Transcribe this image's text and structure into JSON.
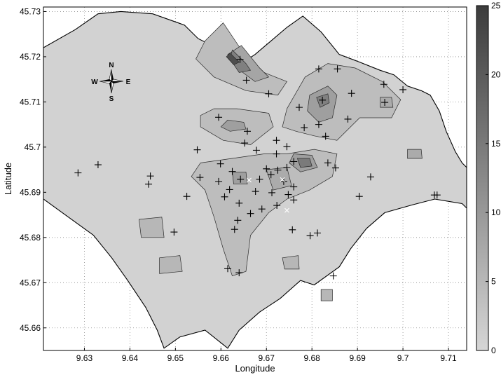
{
  "chart_data": {
    "type": "contour_map",
    "xlabel": "Longitude",
    "ylabel": "Latitude",
    "xlim": [
      9.621,
      9.714
    ],
    "ylim": [
      45.655,
      45.731
    ],
    "xticks": [
      "9.63",
      "9.64",
      "9.65",
      "9.66",
      "9.67",
      "9.68",
      "9.69",
      "9.7",
      "9.71"
    ],
    "yticks": [
      "45.66",
      "45.67",
      "45.68",
      "45.69",
      "45.7",
      "45.71",
      "45.72",
      "45.73"
    ],
    "grid": true,
    "colorbar": {
      "min": 0,
      "max": 25,
      "ticks": [
        "0",
        "5",
        "10",
        "15",
        "20",
        "25"
      ],
      "colormap": "gray",
      "low_color": "#d6d6d6",
      "high_color": "#3c3c3c"
    },
    "compass": {
      "N": "N",
      "S": "S",
      "E": "E",
      "W": "W"
    },
    "boundary": [
      [
        9.621,
        45.722
      ],
      [
        9.628,
        45.726
      ],
      [
        9.633,
        45.7295
      ],
      [
        9.638,
        45.73
      ],
      [
        9.645,
        45.7295
      ],
      [
        9.652,
        45.727
      ],
      [
        9.655,
        45.724
      ],
      [
        9.658,
        45.7225
      ],
      [
        9.661,
        45.7215
      ],
      [
        9.6645,
        45.7185
      ],
      [
        9.6675,
        45.7205
      ],
      [
        9.671,
        45.7235
      ],
      [
        9.6745,
        45.7265
      ],
      [
        9.678,
        45.729
      ],
      [
        9.682,
        45.7255
      ],
      [
        9.686,
        45.7205
      ],
      [
        9.69,
        45.719
      ],
      [
        9.695,
        45.717
      ],
      [
        9.698,
        45.716
      ],
      [
        9.701,
        45.7135
      ],
      [
        9.704,
        45.7125
      ],
      [
        9.706,
        45.7115
      ],
      [
        9.708,
        45.708
      ],
      [
        9.7095,
        45.7035
      ],
      [
        9.7115,
        45.699
      ],
      [
        9.713,
        45.6965
      ],
      [
        9.714,
        45.6955
      ],
      [
        9.714,
        45.6865
      ],
      [
        9.713,
        45.6875
      ],
      [
        9.707,
        45.6885
      ],
      [
        9.702,
        45.6872
      ],
      [
        9.696,
        45.6855
      ],
      [
        9.692,
        45.682
      ],
      [
        9.6885,
        45.6775
      ],
      [
        9.686,
        45.6735
      ],
      [
        9.6805,
        45.6695
      ],
      [
        9.6775,
        45.6705
      ],
      [
        9.673,
        45.6665
      ],
      [
        9.6685,
        45.6635
      ],
      [
        9.664,
        45.6595
      ],
      [
        9.6615,
        45.6555
      ],
      [
        9.6565,
        45.6595
      ],
      [
        9.651,
        45.658
      ],
      [
        9.6475,
        45.6555
      ],
      [
        9.646,
        45.6595
      ],
      [
        9.6435,
        45.6645
      ],
      [
        9.6395,
        45.6705
      ],
      [
        9.636,
        45.6755
      ],
      [
        9.632,
        45.6805
      ],
      [
        9.6265,
        45.6845
      ],
      [
        9.621,
        45.6885
      ]
    ],
    "level_regions": [
      {
        "level": 4,
        "ring": [
          [
            9.6565,
            45.7235
          ],
          [
            9.6605,
            45.7275
          ],
          [
            9.6645,
            45.7215
          ],
          [
            9.6695,
            45.7165
          ],
          [
            9.6745,
            45.7145
          ],
          [
            9.6725,
            45.7115
          ],
          [
            9.6655,
            45.7125
          ],
          [
            9.6585,
            45.7155
          ],
          [
            9.6545,
            45.7195
          ]
        ]
      },
      {
        "level": 8,
        "ring": [
          [
            9.6645,
            45.7225
          ],
          [
            9.6685,
            45.7175
          ],
          [
            9.6705,
            45.7155
          ],
          [
            9.6675,
            45.7145
          ],
          [
            9.6635,
            45.7175
          ],
          [
            9.6615,
            45.7205
          ]
        ]
      },
      {
        "level": 14,
        "ring": [
          [
            9.6625,
            45.7215
          ],
          [
            9.6655,
            45.7185
          ],
          [
            9.6665,
            45.717
          ],
          [
            9.664,
            45.7165
          ],
          [
            9.662,
            45.7195
          ]
        ]
      },
      {
        "level": 22,
        "ring": [
          [
            9.662,
            45.7208
          ],
          [
            9.664,
            45.7188
          ],
          [
            9.6628,
            45.7182
          ],
          [
            9.6612,
            45.72
          ]
        ]
      },
      {
        "level": 4,
        "ring": [
          [
            9.6585,
            45.7085
          ],
          [
            9.6635,
            45.7085
          ],
          [
            9.6705,
            45.7075
          ],
          [
            9.6715,
            45.7045
          ],
          [
            9.6665,
            45.7005
          ],
          [
            9.6605,
            45.7015
          ],
          [
            9.6555,
            45.7045
          ],
          [
            9.6555,
            45.707
          ]
        ]
      },
      {
        "level": 9,
        "ring": [
          [
            9.6615,
            45.706
          ],
          [
            9.665,
            45.7055
          ],
          [
            9.6655,
            45.704
          ],
          [
            9.662,
            45.7035
          ],
          [
            9.66,
            45.7045
          ]
        ]
      },
      {
        "level": 4,
        "ring": [
          [
            9.6745,
            45.7085
          ],
          [
            9.6785,
            45.7155
          ],
          [
            9.6835,
            45.7185
          ],
          [
            9.6895,
            45.7175
          ],
          [
            9.6955,
            45.7145
          ],
          [
            9.6995,
            45.7105
          ],
          [
            9.6975,
            45.7065
          ],
          [
            9.6905,
            45.7065
          ],
          [
            9.6855,
            45.7015
          ],
          [
            9.6805,
            45.7025
          ],
          [
            9.6765,
            45.7035
          ],
          [
            9.6735,
            45.7045
          ]
        ]
      },
      {
        "level": 9,
        "ring": [
          [
            9.6795,
            45.7115
          ],
          [
            9.6835,
            45.7135
          ],
          [
            9.6855,
            45.7115
          ],
          [
            9.6845,
            45.7065
          ],
          [
            9.6815,
            45.7055
          ],
          [
            9.679,
            45.708
          ]
        ]
      },
      {
        "level": 14,
        "ring": [
          [
            9.681,
            45.711
          ],
          [
            9.6835,
            45.7118
          ],
          [
            9.6838,
            45.7098
          ],
          [
            9.6818,
            45.7088
          ]
        ]
      },
      {
        "level": 7,
        "ring": [
          [
            9.695,
            45.711
          ],
          [
            9.6975,
            45.711
          ],
          [
            9.6978,
            45.7088
          ],
          [
            9.695,
            45.7088
          ]
        ]
      },
      {
        "level": 7,
        "ring": [
          [
            9.701,
            45.6995
          ],
          [
            9.704,
            45.6995
          ],
          [
            9.7042,
            45.6975
          ],
          [
            9.701,
            45.6975
          ]
        ]
      },
      {
        "level": 4,
        "ring": [
          [
            9.6555,
            45.6965
          ],
          [
            9.6625,
            45.6975
          ],
          [
            9.6695,
            45.6985
          ],
          [
            9.6745,
            45.6985
          ],
          [
            9.6805,
            45.6995
          ],
          [
            9.6855,
            45.6985
          ],
          [
            9.6845,
            45.6935
          ],
          [
            9.6795,
            45.6905
          ],
          [
            9.6745,
            45.6885
          ],
          [
            9.6705,
            45.6855
          ],
          [
            9.6665,
            45.6805
          ],
          [
            9.6655,
            45.6725
          ],
          [
            9.6625,
            45.6715
          ],
          [
            9.6605,
            45.6775
          ],
          [
            9.6585,
            45.6845
          ],
          [
            9.6565,
            45.6905
          ],
          [
            9.6535,
            45.6935
          ]
        ]
      },
      {
        "level": 9,
        "ring": [
          [
            9.676,
            45.6985
          ],
          [
            9.68,
            45.6982
          ],
          [
            9.6812,
            45.6955
          ],
          [
            9.6775,
            45.6945
          ],
          [
            9.675,
            45.6965
          ]
        ]
      },
      {
        "level": 15,
        "ring": [
          [
            9.6768,
            45.6975
          ],
          [
            9.6795,
            45.6975
          ],
          [
            9.68,
            45.6958
          ],
          [
            9.6775,
            45.6955
          ]
        ]
      },
      {
        "level": 9,
        "ring": [
          [
            9.6625,
            45.6945
          ],
          [
            9.6655,
            45.6945
          ],
          [
            9.6658,
            45.6918
          ],
          [
            9.6628,
            45.6918
          ]
        ]
      },
      {
        "level": 7,
        "ring": [
          [
            9.67,
            45.695
          ],
          [
            9.6745,
            45.6955
          ],
          [
            9.6755,
            45.6915
          ],
          [
            9.6715,
            45.6905
          ]
        ]
      },
      {
        "level": 5,
        "ring": [
          [
            9.642,
            45.684
          ],
          [
            9.647,
            45.6845
          ],
          [
            9.6475,
            45.68
          ],
          [
            9.6425,
            45.68
          ]
        ]
      },
      {
        "level": 5,
        "ring": [
          [
            9.6465,
            45.6755
          ],
          [
            9.651,
            45.676
          ],
          [
            9.6515,
            45.6725
          ],
          [
            9.6465,
            45.672
          ]
        ]
      },
      {
        "level": 5,
        "ring": [
          [
            9.6735,
            45.6755
          ],
          [
            9.677,
            45.676
          ],
          [
            9.6772,
            45.673
          ],
          [
            9.674,
            45.673
          ]
        ]
      },
      {
        "level": 5,
        "ring": [
          [
            9.682,
            45.6685
          ],
          [
            9.6845,
            45.6685
          ],
          [
            9.6845,
            45.666
          ],
          [
            9.682,
            45.666
          ]
        ]
      }
    ],
    "stations": [
      [
        9.6642,
        45.7194
      ],
      [
        9.6656,
        45.7148
      ],
      [
        9.6815,
        45.7173
      ],
      [
        9.6856,
        45.7173
      ],
      [
        9.6887,
        45.7119
      ],
      [
        9.6823,
        45.7104
      ],
      [
        9.6772,
        45.7088
      ],
      [
        9.6783,
        45.7043
      ],
      [
        9.6815,
        45.705
      ],
      [
        9.683,
        45.7024
      ],
      [
        9.6958,
        45.7139
      ],
      [
        9.7,
        45.7127
      ],
      [
        9.696,
        45.7099
      ],
      [
        9.6879,
        45.7062
      ],
      [
        9.6595,
        45.7066
      ],
      [
        9.6658,
        45.7035
      ],
      [
        9.6652,
        45.7009
      ],
      [
        9.6678,
        45.6993
      ],
      [
        9.6548,
        45.6994
      ],
      [
        9.6705,
        45.7118
      ],
      [
        9.6722,
        45.7015
      ],
      [
        9.6745,
        45.7001
      ],
      [
        9.6722,
        45.6985
      ],
      [
        9.676,
        45.6968
      ],
      [
        9.6745,
        45.6955
      ],
      [
        9.6725,
        45.6949
      ],
      [
        9.671,
        45.6939
      ],
      [
        9.67,
        45.6952
      ],
      [
        9.6685,
        45.6929
      ],
      [
        9.6738,
        45.6924
      ],
      [
        9.676,
        45.6912
      ],
      [
        9.6748,
        45.6895
      ],
      [
        9.676,
        45.6883
      ],
      [
        9.6712,
        45.6899
      ],
      [
        9.6676,
        45.6902
      ],
      [
        9.669,
        45.6863
      ],
      [
        9.6665,
        45.6853
      ],
      [
        9.6643,
        45.6929
      ],
      [
        9.6599,
        45.6963
      ],
      [
        9.6595,
        45.6924
      ],
      [
        9.6625,
        45.6946
      ],
      [
        9.6619,
        45.6906
      ],
      [
        9.6608,
        45.689
      ],
      [
        9.664,
        45.6876
      ],
      [
        9.6637,
        45.6838
      ],
      [
        9.663,
        45.6818
      ],
      [
        9.6615,
        45.6731
      ],
      [
        9.664,
        45.6722
      ],
      [
        9.6723,
        45.6871
      ],
      [
        9.6757,
        45.6817
      ],
      [
        9.6796,
        45.6804
      ],
      [
        9.6812,
        45.681
      ],
      [
        9.6835,
        45.6965
      ],
      [
        9.6852,
        45.6954
      ],
      [
        9.6847,
        45.6715
      ],
      [
        9.6286,
        45.6943
      ],
      [
        9.633,
        45.6961
      ],
      [
        9.6445,
        45.6936
      ],
      [
        9.6441,
        45.6918
      ],
      [
        9.6525,
        45.6891
      ],
      [
        9.6554,
        45.6933
      ],
      [
        9.6497,
        45.6812
      ],
      [
        9.6904,
        45.6891
      ],
      [
        9.6929,
        45.6934
      ],
      [
        9.7075,
        45.6894
      ],
      [
        9.7069,
        45.6894
      ]
    ],
    "white_stations": [
      [
        9.6662,
        45.6927
      ],
      [
        9.6735,
        45.6928
      ],
      [
        9.6745,
        45.686
      ]
    ]
  }
}
